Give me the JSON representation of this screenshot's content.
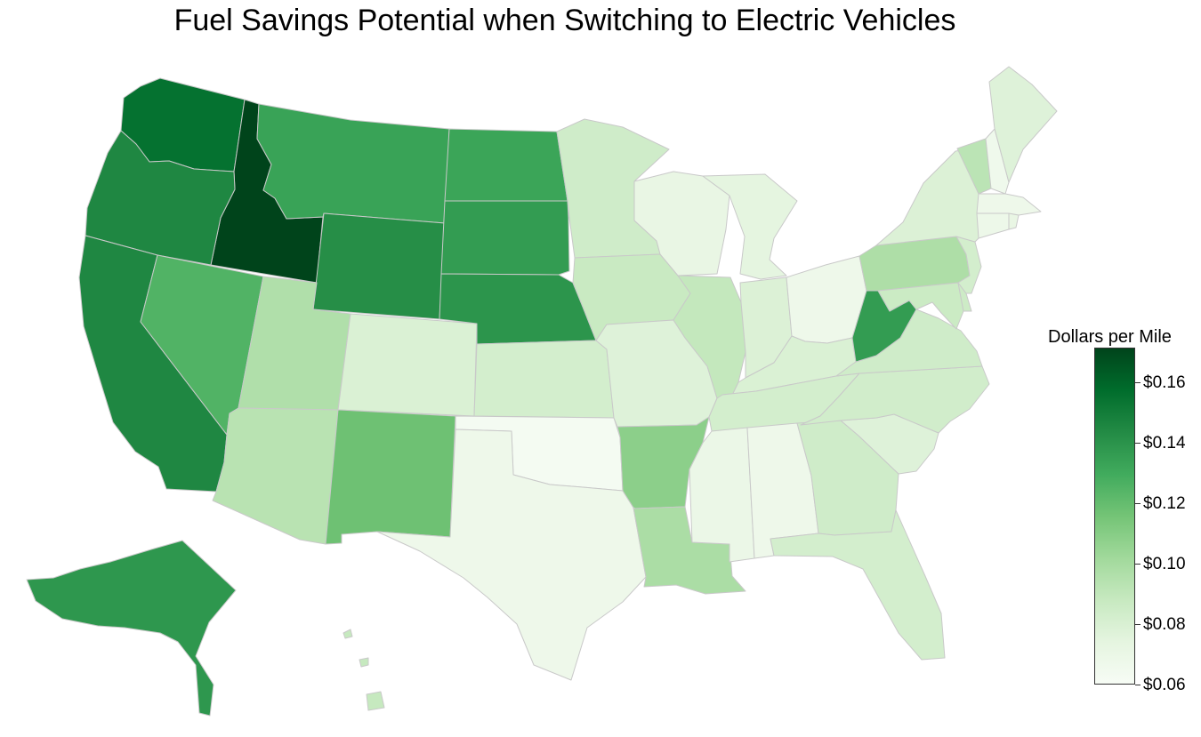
{
  "title": "Fuel Savings Potential when Switching to Electric Vehicles",
  "legend": {
    "title": "Dollars per Mile",
    "ticks": [
      "$0.06",
      "$0.08",
      "$0.10",
      "$0.12",
      "$0.14",
      "$0.16"
    ],
    "range": [
      0.06,
      0.171
    ],
    "colorscale": [
      "#f7fcf5",
      "#e5f5e0",
      "#c7e9c0",
      "#a1d99b",
      "#74c476",
      "#41ab5d",
      "#238b45",
      "#006d2c",
      "#00441b"
    ]
  },
  "states": {
    "WA": 0.155,
    "ID": 0.171,
    "OR": 0.145,
    "CA": 0.145,
    "NV": 0.125,
    "MT": 0.133,
    "WY": 0.142,
    "UT": 0.096,
    "AZ": 0.093,
    "CO": 0.079,
    "NM": 0.117,
    "ND": 0.132,
    "SD": 0.136,
    "NE": 0.139,
    "KS": 0.082,
    "OK": 0.062,
    "TX": 0.067,
    "MN": 0.084,
    "IA": 0.087,
    "MO": 0.077,
    "AR": 0.108,
    "LA": 0.098,
    "WI": 0.071,
    "IL": 0.089,
    "MI": 0.074,
    "IN": 0.078,
    "OH": 0.067,
    "KY": 0.079,
    "TN": 0.082,
    "MS": 0.069,
    "AL": 0.067,
    "GA": 0.084,
    "FL": 0.082,
    "SC": 0.077,
    "NC": 0.083,
    "VA": 0.084,
    "WV": 0.136,
    "PA": 0.097,
    "NY": 0.078,
    "VT": 0.092,
    "NH": 0.066,
    "ME": 0.077,
    "MA": 0.067,
    "CT": 0.068,
    "RI": 0.071,
    "NJ": 0.082,
    "DE": 0.085,
    "MD": 0.086,
    "AK": 0.138,
    "HI": 0.088
  }
}
